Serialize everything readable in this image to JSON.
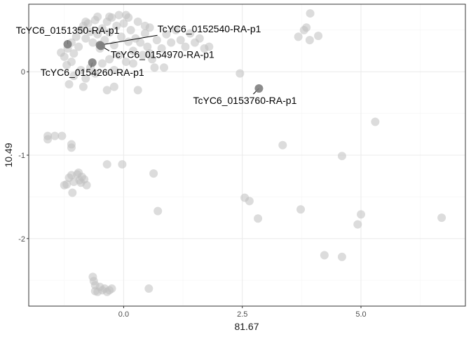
{
  "chart_data": {
    "type": "scatter",
    "xlabel": "81.67",
    "ylabel": "10.49",
    "xlim": [
      -2.0,
      7.2
    ],
    "ylim": [
      -2.81,
      0.81
    ],
    "xticks": [
      {
        "value": 0.0,
        "label": "0.0"
      },
      {
        "value": 2.5,
        "label": "2.5"
      },
      {
        "value": 5.0,
        "label": "5.0"
      }
    ],
    "yticks": [
      {
        "value": -2,
        "label": "-2"
      },
      {
        "value": -1,
        "label": "-1"
      },
      {
        "value": 0,
        "label": "0"
      }
    ],
    "grid": true,
    "colors": {
      "point": "#bfbfbf",
      "highlight": "#7f7f7f",
      "grid_major": "#ebebeb",
      "grid_minor": "#f5f5f5",
      "panel_border": "#333333"
    },
    "points": [
      {
        "x": -1.32,
        "y": 0.23
      },
      {
        "x": -1.25,
        "y": 0.18
      },
      {
        "x": -1.18,
        "y": 0.28
      },
      {
        "x": -1.1,
        "y": 0.35
      },
      {
        "x": -1.05,
        "y": 0.22
      },
      {
        "x": -1.0,
        "y": 0.42
      },
      {
        "x": -0.95,
        "y": 0.3
      },
      {
        "x": -0.9,
        "y": 0.5
      },
      {
        "x": -0.85,
        "y": 0.55
      },
      {
        "x": -0.8,
        "y": 0.4
      },
      {
        "x": -0.75,
        "y": 0.58
      },
      {
        "x": -0.7,
        "y": 0.48
      },
      {
        "x": -0.65,
        "y": 0.35
      },
      {
        "x": -0.6,
        "y": 0.62
      },
      {
        "x": -0.55,
        "y": 0.45
      },
      {
        "x": -0.5,
        "y": 0.28
      },
      {
        "x": -0.45,
        "y": 0.52
      },
      {
        "x": -0.4,
        "y": 0.38
      },
      {
        "x": -0.35,
        "y": 0.6
      },
      {
        "x": -0.3,
        "y": 0.47
      },
      {
        "x": -0.25,
        "y": 0.65
      },
      {
        "x": -0.2,
        "y": 0.32
      },
      {
        "x": -0.15,
        "y": 0.55
      },
      {
        "x": -0.1,
        "y": 0.68
      },
      {
        "x": -0.05,
        "y": 0.42
      },
      {
        "x": 0.0,
        "y": 0.58
      },
      {
        "x": 0.05,
        "y": 0.68
      },
      {
        "x": 0.1,
        "y": 0.36
      },
      {
        "x": 0.15,
        "y": 0.5
      },
      {
        "x": 0.2,
        "y": 0.25
      },
      {
        "x": 0.25,
        "y": 0.4
      },
      {
        "x": 0.3,
        "y": 0.6
      },
      {
        "x": 0.35,
        "y": 0.35
      },
      {
        "x": 0.4,
        "y": 0.2
      },
      {
        "x": 0.45,
        "y": 0.46
      },
      {
        "x": 0.5,
        "y": 0.3
      },
      {
        "x": 0.55,
        "y": 0.53
      },
      {
        "x": 0.6,
        "y": 0.15
      },
      {
        "x": 0.65,
        "y": 0.05
      },
      {
        "x": 0.7,
        "y": 0.38
      },
      {
        "x": 0.8,
        "y": 0.28
      },
      {
        "x": 0.9,
        "y": 0.45
      },
      {
        "x": 1.0,
        "y": 0.35
      },
      {
        "x": 1.1,
        "y": 0.5
      },
      {
        "x": 1.2,
        "y": 0.38
      },
      {
        "x": 1.3,
        "y": 0.3
      },
      {
        "x": 1.4,
        "y": 0.46
      },
      {
        "x": 1.5,
        "y": 0.35
      },
      {
        "x": 1.6,
        "y": 0.4
      },
      {
        "x": 1.7,
        "y": 0.28
      },
      {
        "x": 1.8,
        "y": 0.3
      },
      {
        "x": -1.2,
        "y": 0.08
      },
      {
        "x": -1.1,
        "y": 0.12
      },
      {
        "x": -1.05,
        "y": -0.05
      },
      {
        "x": -0.9,
        "y": 0.02
      },
      {
        "x": -0.8,
        "y": -0.08
      },
      {
        "x": -0.7,
        "y": 0.05
      },
      {
        "x": -0.6,
        "y": -0.02
      },
      {
        "x": -0.45,
        "y": 0.1
      },
      {
        "x": -0.3,
        "y": 0.15
      },
      {
        "x": -0.2,
        "y": 0.02
      },
      {
        "x": -0.1,
        "y": 0.2
      },
      {
        "x": 0.05,
        "y": 0.12
      },
      {
        "x": 0.2,
        "y": 0.1
      },
      {
        "x": -1.15,
        "y": -0.15
      },
      {
        "x": -0.85,
        "y": -0.18
      },
      {
        "x": -0.35,
        "y": -0.22
      },
      {
        "x": -0.2,
        "y": -0.18
      },
      {
        "x": 0.3,
        "y": -0.22
      },
      {
        "x": 0.55,
        "y": 0.22
      },
      {
        "x": 0.45,
        "y": 0.55
      },
      {
        "x": 0.85,
        "y": 0.05
      },
      {
        "x": -0.8,
        "y": 0.6
      },
      {
        "x": -0.55,
        "y": 0.66
      },
      {
        "x": -0.3,
        "y": 0.66
      },
      {
        "x": 0.1,
        "y": 0.65
      },
      {
        "x": 3.93,
        "y": 0.7
      },
      {
        "x": 3.8,
        "y": 0.5
      },
      {
        "x": 3.85,
        "y": 0.53
      },
      {
        "x": 3.68,
        "y": 0.42
      },
      {
        "x": 4.1,
        "y": 0.43
      },
      {
        "x": 3.92,
        "y": 0.38
      },
      {
        "x": 2.45,
        "y": -0.02
      },
      {
        "x": 5.3,
        "y": -0.6
      },
      {
        "x": 3.35,
        "y": -0.88
      },
      {
        "x": 4.6,
        "y": -1.01
      },
      {
        "x": -1.6,
        "y": -0.77
      },
      {
        "x": -1.6,
        "y": -0.81
      },
      {
        "x": -1.45,
        "y": -0.77
      },
      {
        "x": -1.3,
        "y": -0.77
      },
      {
        "x": -1.1,
        "y": -0.87
      },
      {
        "x": -1.1,
        "y": -0.91
      },
      {
        "x": -0.35,
        "y": -1.11
      },
      {
        "x": -0.03,
        "y": -1.11
      },
      {
        "x": 0.63,
        "y": -1.22
      },
      {
        "x": -1.1,
        "y": -1.24
      },
      {
        "x": -1.15,
        "y": -1.27
      },
      {
        "x": -1.05,
        "y": -1.32
      },
      {
        "x": -0.98,
        "y": -1.23
      },
      {
        "x": -0.93,
        "y": -1.3
      },
      {
        "x": -0.95,
        "y": -1.21
      },
      {
        "x": -0.88,
        "y": -1.26
      },
      {
        "x": -0.83,
        "y": -1.29
      },
      {
        "x": -1.25,
        "y": -1.36
      },
      {
        "x": -1.2,
        "y": -1.35
      },
      {
        "x": -0.9,
        "y": -1.33
      },
      {
        "x": -0.78,
        "y": -1.36
      },
      {
        "x": -1.08,
        "y": -1.45
      },
      {
        "x": 2.55,
        "y": -1.51
      },
      {
        "x": 2.65,
        "y": -1.55
      },
      {
        "x": 2.83,
        "y": -1.76
      },
      {
        "x": 0.72,
        "y": -1.67
      },
      {
        "x": 3.73,
        "y": -1.65
      },
      {
        "x": 5.0,
        "y": -1.71
      },
      {
        "x": 4.93,
        "y": -1.83
      },
      {
        "x": 6.7,
        "y": -1.75
      },
      {
        "x": 4.23,
        "y": -2.2
      },
      {
        "x": 4.6,
        "y": -2.22
      },
      {
        "x": -0.65,
        "y": -2.46
      },
      {
        "x": -0.63,
        "y": -2.51
      },
      {
        "x": -0.6,
        "y": -2.56
      },
      {
        "x": -0.5,
        "y": -2.58
      },
      {
        "x": -0.45,
        "y": -2.62
      },
      {
        "x": -0.4,
        "y": -2.6
      },
      {
        "x": -0.35,
        "y": -2.64
      },
      {
        "x": -0.3,
        "y": -2.62
      },
      {
        "x": -0.55,
        "y": -2.64
      },
      {
        "x": -0.25,
        "y": -2.6
      },
      {
        "x": -0.6,
        "y": -2.63
      },
      {
        "x": 0.53,
        "y": -2.6
      }
    ],
    "highlighted": [
      {
        "name": "TcYC6_0151350-RA-p1",
        "x": -1.18,
        "y": 0.33
      },
      {
        "name": "TcYC6_0152540-RA-p1",
        "x": -0.5,
        "y": 0.32
      },
      {
        "name": "TcYC6_0154970-RA-p1",
        "x": -0.48,
        "y": 0.31
      },
      {
        "name": "TcYC6_0154260-RA-p1",
        "x": -0.66,
        "y": 0.11
      },
      {
        "name": "TcYC6_0153760-RA-p1",
        "x": 2.85,
        "y": -0.2
      }
    ]
  }
}
